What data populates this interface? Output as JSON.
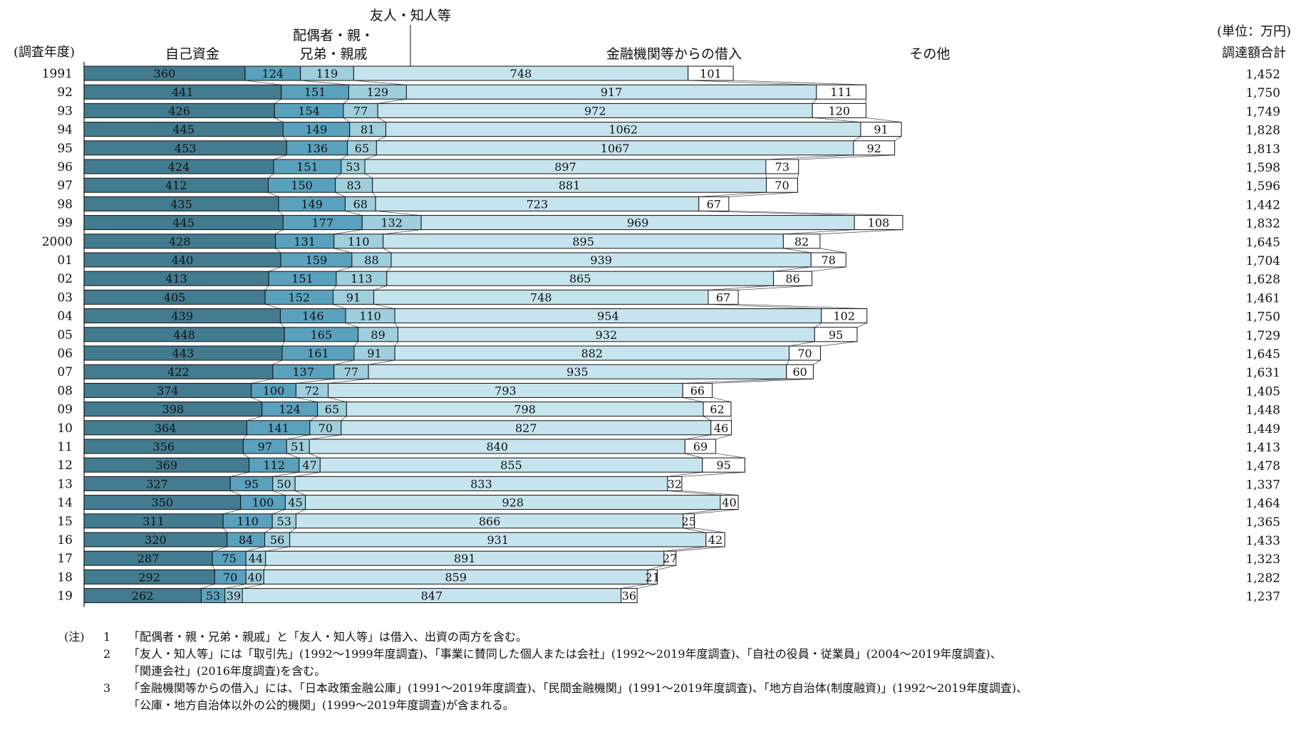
{
  "chart_data": {
    "type": "bar",
    "stacked": true,
    "orientation": "horizontal",
    "unit": "(単位：万円)",
    "total_label": "調達額合計",
    "y_axis_label": "(調査年度)",
    "categories": [
      "1991",
      "92",
      "93",
      "94",
      "95",
      "96",
      "97",
      "98",
      "99",
      "2000",
      "01",
      "02",
      "03",
      "04",
      "05",
      "06",
      "07",
      "08",
      "09",
      "10",
      "11",
      "12",
      "13",
      "14",
      "15",
      "16",
      "17",
      "18",
      "19"
    ],
    "series": [
      {
        "name": "自己資金",
        "color": "#437b90",
        "values": [
          360,
          441,
          426,
          445,
          453,
          424,
          412,
          435,
          445,
          428,
          440,
          413,
          405,
          439,
          448,
          443,
          422,
          374,
          398,
          364,
          356,
          369,
          327,
          350,
          311,
          320,
          287,
          292,
          262
        ]
      },
      {
        "name": "配偶者・親・兄弟・親戚",
        "color": "#5aa1bd",
        "values": [
          124,
          151,
          154,
          149,
          136,
          151,
          150,
          149,
          177,
          131,
          159,
          151,
          152,
          146,
          165,
          161,
          137,
          100,
          124,
          141,
          97,
          112,
          95,
          100,
          110,
          84,
          75,
          70,
          53
        ]
      },
      {
        "name": "友人・知人等",
        "color": "#9fcedd",
        "values": [
          119,
          129,
          77,
          81,
          65,
          53,
          83,
          68,
          132,
          110,
          88,
          113,
          91,
          110,
          89,
          91,
          77,
          72,
          65,
          70,
          51,
          47,
          50,
          45,
          53,
          56,
          44,
          40,
          39
        ]
      },
      {
        "name": "金融機関等からの借入",
        "color": "#c6e4ed",
        "values": [
          748,
          917,
          972,
          1062,
          1067,
          897,
          881,
          723,
          969,
          895,
          939,
          865,
          748,
          954,
          932,
          882,
          935,
          793,
          798,
          827,
          840,
          855,
          833,
          928,
          866,
          931,
          891,
          859,
          847
        ]
      },
      {
        "name": "その他",
        "color": "#ffffff",
        "values": [
          101,
          111,
          120,
          91,
          92,
          73,
          70,
          67,
          108,
          82,
          78,
          86,
          67,
          102,
          95,
          70,
          60,
          66,
          62,
          46,
          69,
          95,
          32,
          40,
          25,
          42,
          27,
          21,
          36
        ]
      }
    ],
    "totals": [
      "1,452",
      "1,750",
      "1,749",
      "1,828",
      "1,813",
      "1,598",
      "1,596",
      "1,442",
      "1,832",
      "1,645",
      "1,704",
      "1,628",
      "1,461",
      "1,750",
      "1,729",
      "1,645",
      "1,631",
      "1,405",
      "1,448",
      "1,449",
      "1,413",
      "1,478",
      "1,337",
      "1,464",
      "1,365",
      "1,433",
      "1,323",
      "1,282",
      "1,237"
    ],
    "series_header_lines": [
      [
        "自己資金"
      ],
      [
        "配偶者・親・",
        "兄弟・親戚"
      ],
      [
        "友人・知人等"
      ],
      [
        "金融機関等からの借入"
      ],
      [
        "その他"
      ]
    ]
  },
  "notes": {
    "prefix": "(注)",
    "items": [
      {
        "num": "1",
        "lines": [
          "「配偶者・親・兄弟・親戚」と「友人・知人等」は借入、出資の両方を含む。"
        ]
      },
      {
        "num": "2",
        "lines": [
          "「友人・知人等」には「取引先」(1992～1999年度調査)、「事業に賛同した個人または会社」(1992～2019年度調査)、「自社の役員・従業員」(2004～2019年度調査)、",
          "「関連会社」(2016年度調査)を含む。"
        ]
      },
      {
        "num": "3",
        "lines": [
          "「金融機関等からの借入」には、「日本政策金融公庫」(1991～2019年度調査)、「民間金融機関」(1991～2019年度調査)、「地方自治体(制度融資)」(1992～2019年度調査)、",
          "「公庫・地方自治体以外の公的機関」(1999～2019年度調査)が含まれる。"
        ]
      }
    ]
  }
}
